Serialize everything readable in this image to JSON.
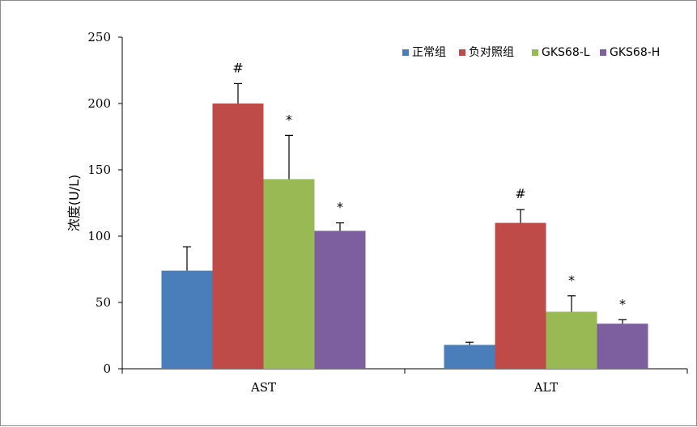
{
  "chart_data": {
    "type": "bar",
    "title": "",
    "xlabel": "",
    "ylabel": "浓度(U/L)",
    "ylim": [
      0,
      250
    ],
    "yticks": [
      0,
      50,
      100,
      150,
      200,
      250
    ],
    "grid": false,
    "legend_position": "top-right",
    "categories": [
      "AST",
      "ALT"
    ],
    "series": [
      {
        "name": "正常组",
        "color": "#4a7ebb",
        "values": [
          74,
          18
        ],
        "errors": [
          18,
          2
        ],
        "annotations": [
          "",
          ""
        ]
      },
      {
        "name": "负对照组",
        "color": "#be4b48",
        "values": [
          200,
          110
        ],
        "errors": [
          15,
          10
        ],
        "annotations": [
          "#",
          "#"
        ]
      },
      {
        "name": "GKS68-L",
        "color": "#98b954",
        "values": [
          143,
          43
        ],
        "errors": [
          33,
          12
        ],
        "annotations": [
          "*",
          "*"
        ]
      },
      {
        "name": "GKS68-H",
        "color": "#7d5fa0",
        "values": [
          104,
          34
        ],
        "errors": [
          6,
          3
        ],
        "annotations": [
          "*",
          "*"
        ]
      }
    ]
  }
}
